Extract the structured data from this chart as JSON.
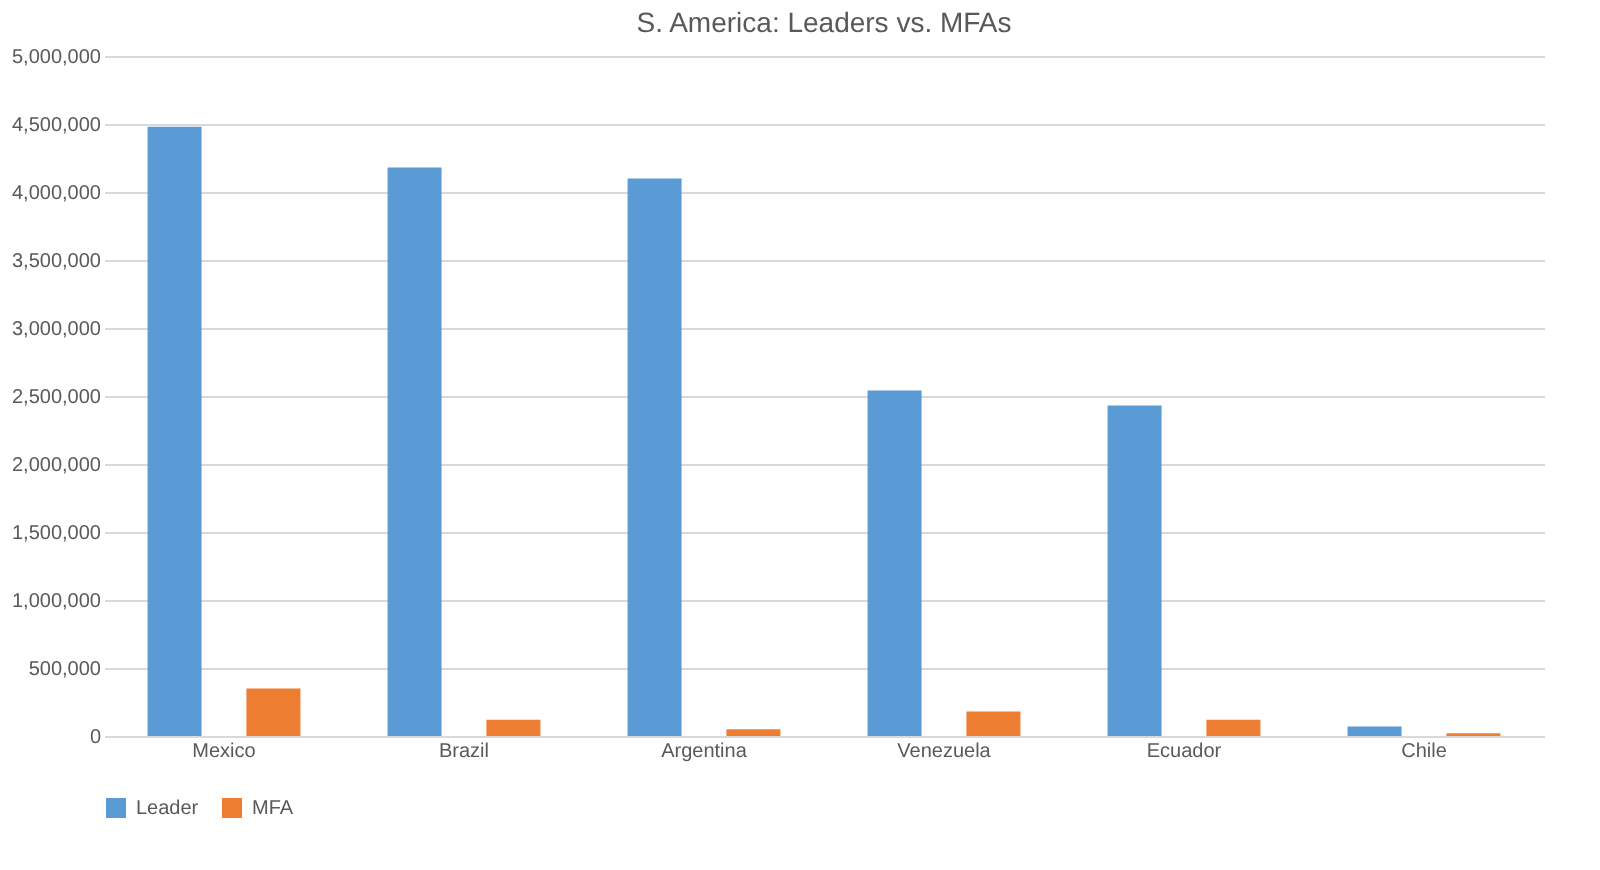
{
  "chart_data": {
    "type": "bar",
    "title": "S. America: Leaders vs. MFAs",
    "categories": [
      "Mexico",
      "Brazil",
      "Argentina",
      "Venezuela",
      "Ecuador",
      "Chile"
    ],
    "series": [
      {
        "name": "Leader",
        "color": "#5b9bd5",
        "values": [
          4480000,
          4180000,
          4100000,
          2540000,
          2430000,
          70000
        ]
      },
      {
        "name": "MFA",
        "color": "#ed7d31",
        "values": [
          350000,
          120000,
          50000,
          180000,
          120000,
          20000
        ]
      }
    ],
    "ylim": [
      0,
      5000000
    ],
    "yticks": [
      {
        "value": 0,
        "label": "0"
      },
      {
        "value": 500000,
        "label": "500,000"
      },
      {
        "value": 1000000,
        "label": "1,000,000"
      },
      {
        "value": 1500000,
        "label": "1,500,000"
      },
      {
        "value": 2000000,
        "label": "2,000,000"
      },
      {
        "value": 2500000,
        "label": "2,500,000"
      },
      {
        "value": 3000000,
        "label": "3,000,000"
      },
      {
        "value": 3500000,
        "label": "3,500,000"
      },
      {
        "value": 4000000,
        "label": "4,000,000"
      },
      {
        "value": 4500000,
        "label": "4,500,000"
      },
      {
        "value": 5000000,
        "label": "5,000,000"
      }
    ],
    "grid": "y",
    "legend": "bottom"
  }
}
